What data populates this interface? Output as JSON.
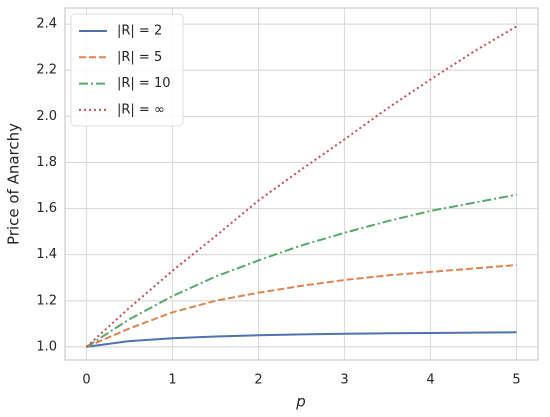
{
  "chart_data": {
    "type": "line",
    "xlabel": "p",
    "ylabel": "Price of Anarchy",
    "x": [
      0,
      0.5,
      1,
      1.5,
      2,
      2.5,
      3,
      3.5,
      4,
      4.5,
      5
    ],
    "series": [
      {
        "name": "|R| = 2",
        "color": "#4c72b0",
        "linestyle": "solid",
        "values": [
          1.0,
          1.025,
          1.037,
          1.045,
          1.05,
          1.054,
          1.057,
          1.059,
          1.06,
          1.062,
          1.063
        ]
      },
      {
        "name": "|R| = 5",
        "color": "#dd8452",
        "linestyle": "dashed",
        "values": [
          1.0,
          1.08,
          1.15,
          1.2,
          1.235,
          1.265,
          1.29,
          1.31,
          1.325,
          1.34,
          1.355
        ]
      },
      {
        "name": "|R| = 10",
        "color": "#55a868",
        "linestyle": "dashdot",
        "values": [
          1.0,
          1.12,
          1.22,
          1.305,
          1.375,
          1.44,
          1.495,
          1.545,
          1.59,
          1.625,
          1.66
        ]
      },
      {
        "name": "|R| = ∞",
        "color": "#c44e52",
        "linestyle": "dotted",
        "values": [
          1.0,
          1.17,
          1.33,
          1.48,
          1.635,
          1.77,
          1.9,
          2.035,
          2.16,
          2.28,
          2.39
        ]
      }
    ],
    "xlim": [
      -0.25,
      5.25
    ],
    "xticks": [
      0,
      1,
      2,
      3,
      4,
      5
    ],
    "ylim": [
      0.943,
      2.47
    ],
    "yticks": [
      {
        "value": 1,
        "label": "1.0"
      },
      1.2,
      1.4,
      1.6,
      1.8,
      {
        "value": 2,
        "label": "2.0"
      },
      2.2,
      2.4
    ],
    "grid": true,
    "legend": "upper left"
  }
}
